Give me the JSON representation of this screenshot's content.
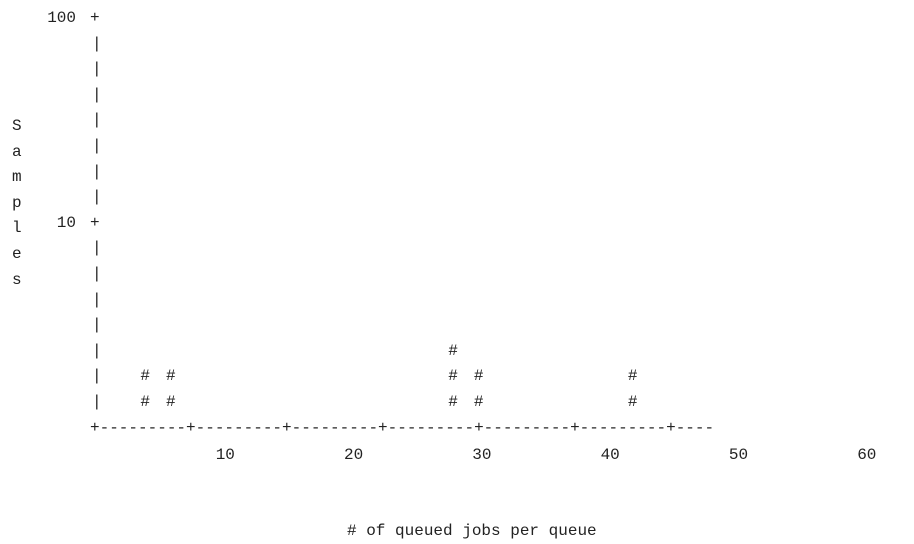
{
  "chart_data": {
    "type": "bar",
    "render_style": "ascii-histogram",
    "mark_glyph": "#",
    "ylabel": "Samples",
    "xlabel": "# of queued jobs per queue",
    "yscale": "log",
    "ylim": [
      1,
      100
    ],
    "xlim": [
      0,
      63
    ],
    "y_ticks": [
      {
        "label": "100",
        "value": 100
      },
      {
        "label": "10",
        "value": 10
      }
    ],
    "x_ticks": [
      {
        "label": "10",
        "value": 10
      },
      {
        "label": "20",
        "value": 20
      },
      {
        "label": "30",
        "value": 30
      },
      {
        "label": "40",
        "value": 40
      },
      {
        "label": "50",
        "value": 50
      },
      {
        "label": "60",
        "value": 60
      }
    ],
    "x": [
      4,
      6,
      28,
      30,
      42
    ],
    "values": [
      2,
      2,
      3,
      2,
      2
    ]
  }
}
